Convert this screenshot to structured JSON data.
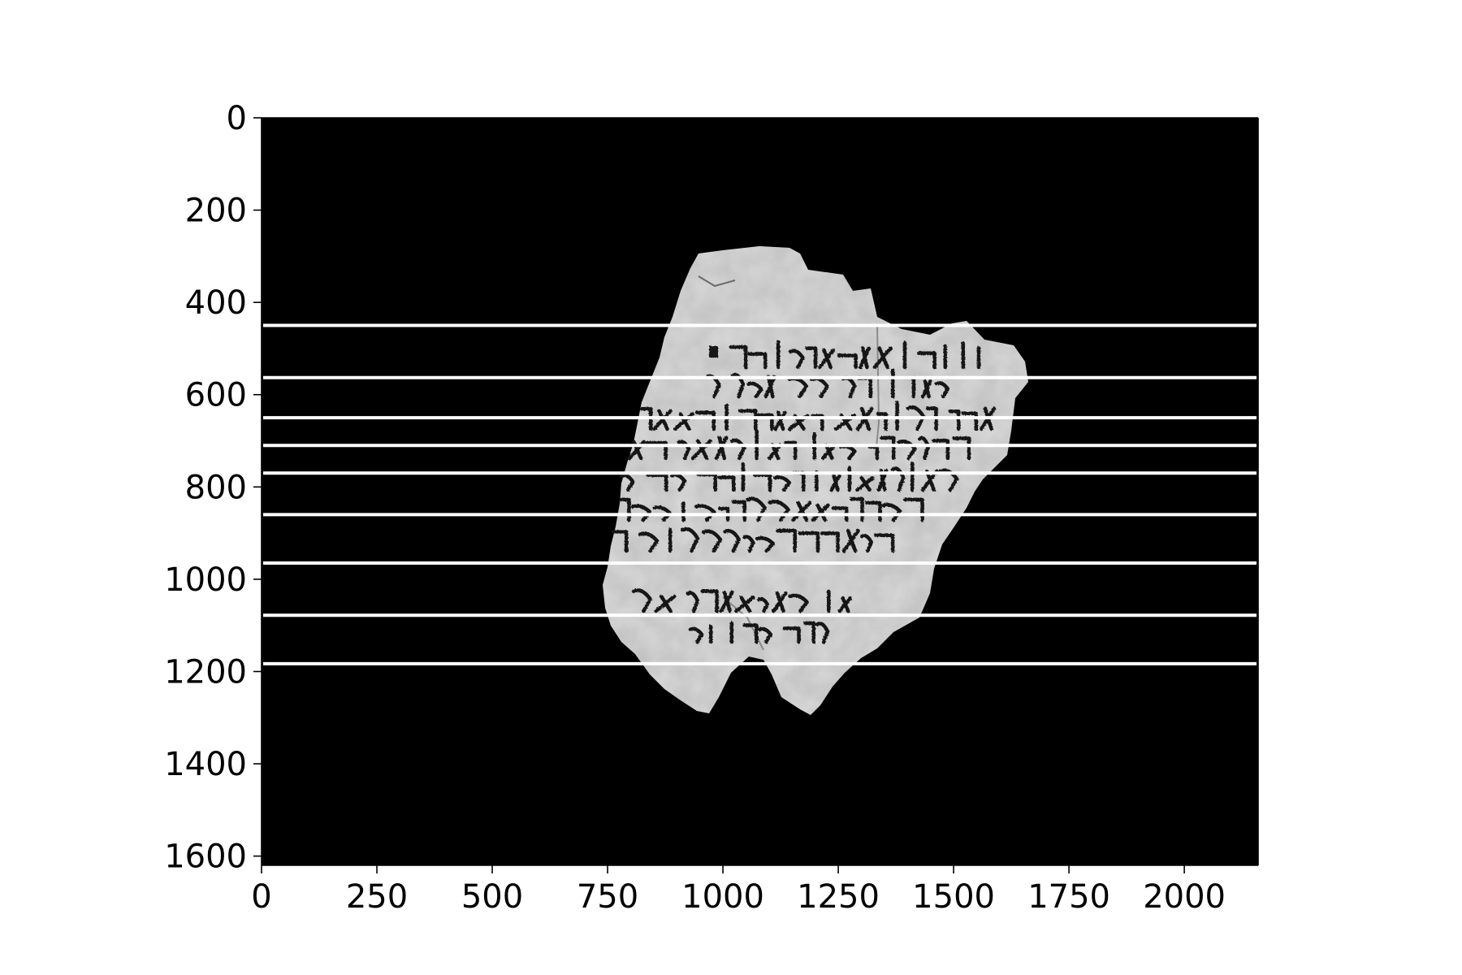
{
  "figure": {
    "type": "image with overlay lines",
    "image": {
      "subject": "fragment of a parchment manuscript with Hebrew-script handwritten lines on black background",
      "width_units": 2160,
      "height_units": 1620
    },
    "x_axis": {
      "range": [
        0,
        2160
      ],
      "ticks": [
        0,
        250,
        500,
        750,
        1000,
        1250,
        1500,
        1750,
        2000
      ],
      "tick_labels": [
        "0",
        "250",
        "500",
        "750",
        "1000",
        "1250",
        "1500",
        "1750",
        "2000"
      ]
    },
    "y_axis": {
      "range": [
        0,
        1620
      ],
      "inverted": true,
      "ticks": [
        0,
        200,
        400,
        600,
        800,
        1000,
        1200,
        1400,
        1600
      ],
      "tick_labels": [
        "0",
        "200",
        "400",
        "600",
        "800",
        "1000",
        "1200",
        "1400",
        "1600"
      ]
    },
    "line_separators": {
      "color": "#ffffff",
      "orientation": "horizontal",
      "x_range": [
        0,
        2160
      ],
      "y_values": [
        450,
        563,
        650,
        710,
        770,
        860,
        965,
        1078,
        1183
      ]
    },
    "colors": {
      "background": "#000000",
      "parchment": "#d9d9d9",
      "ink": "#141414",
      "overlay_line": "#ffffff",
      "axis": "#000000"
    }
  }
}
